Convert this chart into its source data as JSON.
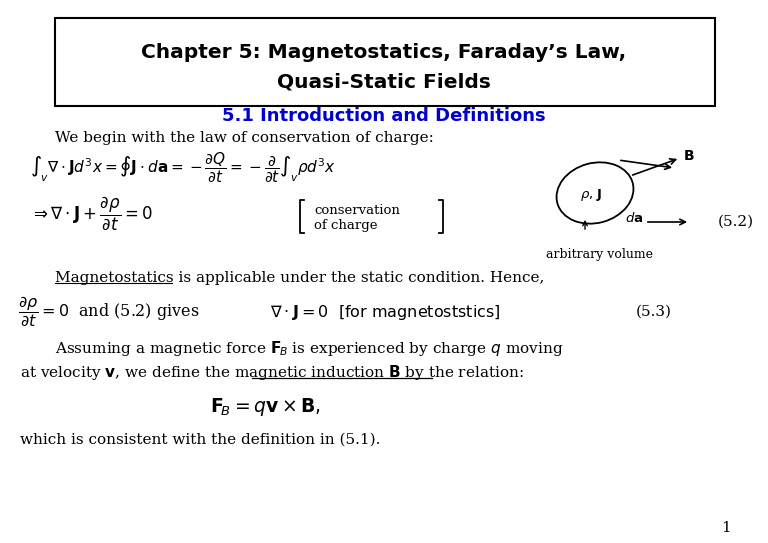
{
  "title_line1": "Chapter 5: Magnetostatics, Faraday’s Law,",
  "title_line2": "Quasi-Static Fields",
  "section": "5.1 Introduction and Definitions",
  "section_color": "#0000cc",
  "bg_color": "#ffffff",
  "text_color": "#000000",
  "page_number": "1",
  "fig_w": 7.68,
  "fig_h": 5.43,
  "dpi": 100
}
